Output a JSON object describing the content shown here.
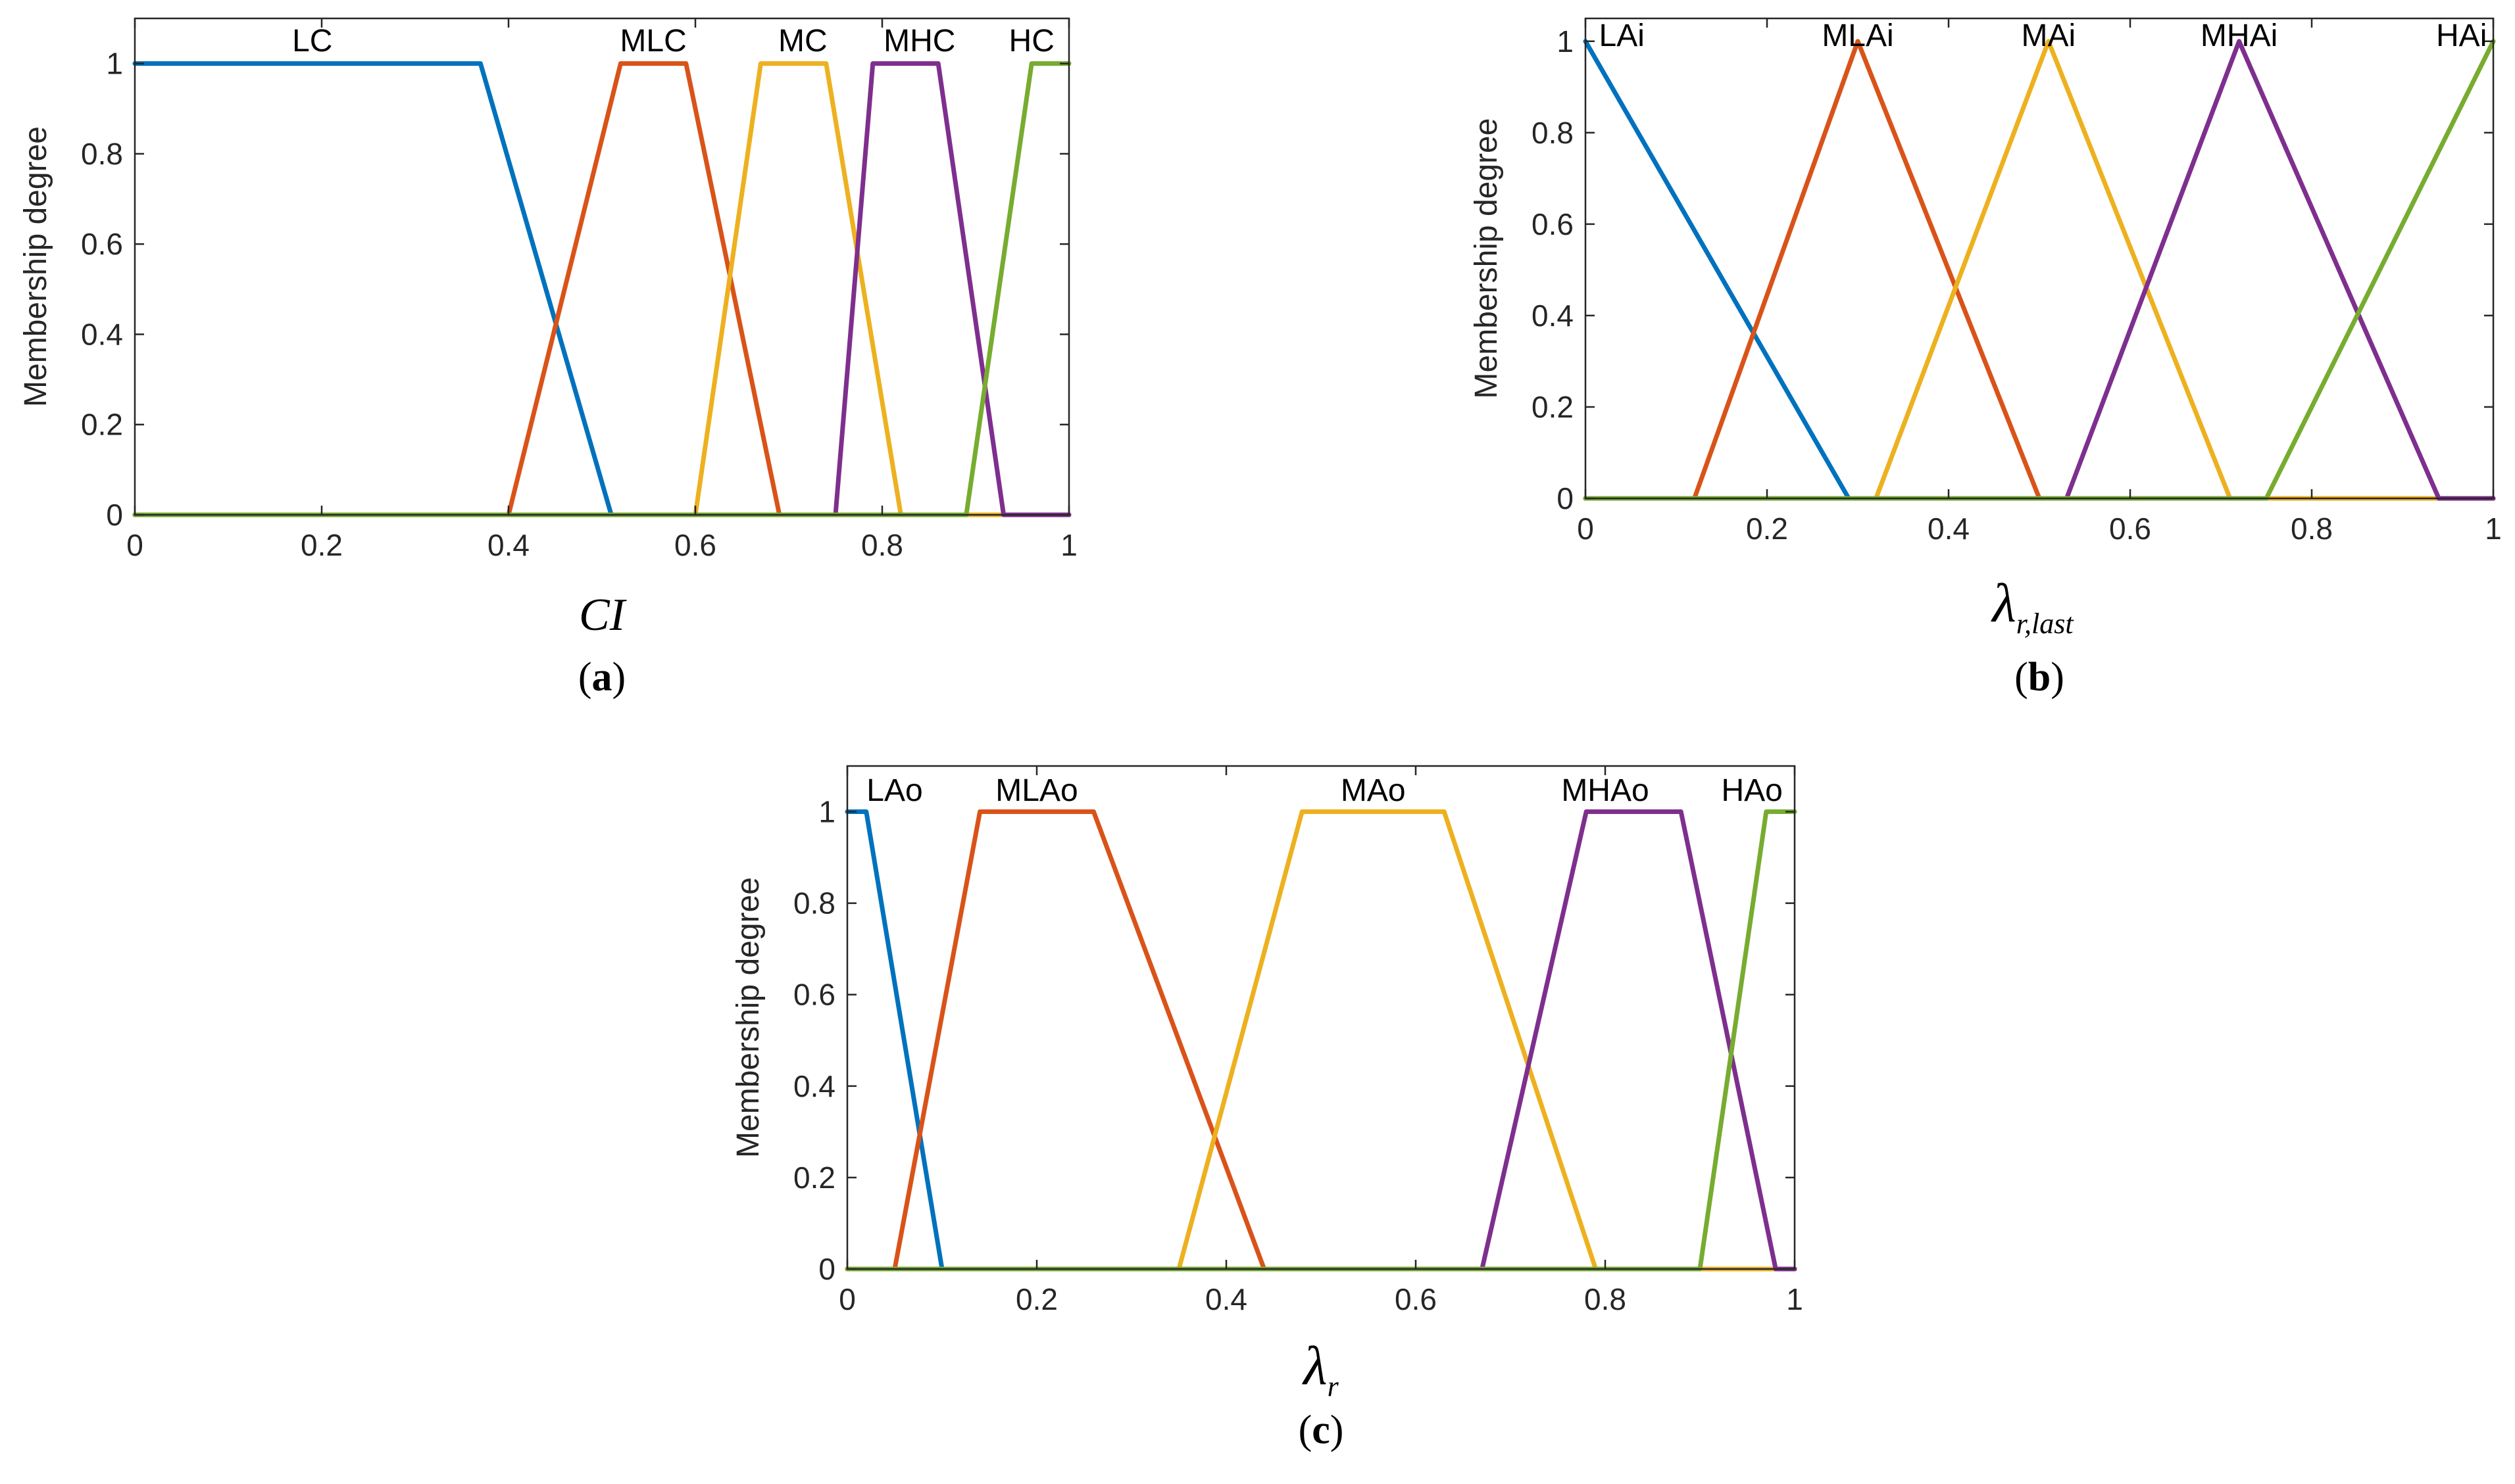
{
  "colors": {
    "blue": "#0072BD",
    "orange": "#D95319",
    "yellow": "#EDB120",
    "purple": "#7E2F8E",
    "green": "#77AC30"
  },
  "chart_data": [
    {
      "type": "line",
      "caption": "a",
      "xlabel": "CI",
      "ylabel": "Membership degree",
      "xlim": [
        0,
        1
      ],
      "ylim": [
        0,
        1.1
      ],
      "xticks": [
        "0",
        "0.2",
        "0.4",
        "0.6",
        "0.8",
        "1"
      ],
      "yticks": [
        "0",
        "0.2",
        "0.4",
        "0.6",
        "0.8",
        "1"
      ],
      "grid": false,
      "series": [
        {
          "name": "LC",
          "color": "blue",
          "x": [
            0,
            0.37,
            0.51,
            1
          ],
          "y": [
            1,
            1,
            0,
            0
          ]
        },
        {
          "name": "MLC",
          "color": "orange",
          "x": [
            0,
            0.4,
            0.52,
            0.59,
            0.69,
            1
          ],
          "y": [
            0,
            0,
            1,
            1,
            0,
            0
          ]
        },
        {
          "name": "MC",
          "color": "yellow",
          "x": [
            0,
            0.6,
            0.67,
            0.74,
            0.82,
            1
          ],
          "y": [
            0,
            0,
            1,
            1,
            0,
            0
          ]
        },
        {
          "name": "MHC",
          "color": "purple",
          "x": [
            0,
            0.75,
            0.79,
            0.86,
            0.93,
            1
          ],
          "y": [
            0,
            0,
            1,
            1,
            0,
            0
          ]
        },
        {
          "name": "HC",
          "color": "green",
          "x": [
            0,
            0.89,
            0.96,
            1
          ],
          "y": [
            0,
            0,
            1,
            1
          ]
        }
      ]
    },
    {
      "type": "line",
      "caption": "b",
      "xlabel": "λ",
      "xlabel_sub": "r,last",
      "ylabel": "Membership degree",
      "xlim": [
        0,
        1
      ],
      "ylim": [
        0,
        1.05
      ],
      "xticks": [
        "0",
        "0.2",
        "0.4",
        "0.6",
        "0.8",
        "1"
      ],
      "yticks": [
        "0",
        "0.2",
        "0.4",
        "0.6",
        "0.8",
        "1"
      ],
      "grid": false,
      "series": [
        {
          "name": "LAi",
          "color": "blue",
          "x": [
            0,
            0.29,
            1
          ],
          "y": [
            1,
            0,
            0
          ]
        },
        {
          "name": "MLAi",
          "color": "orange",
          "x": [
            0,
            0.12,
            0.3,
            0.5,
            1
          ],
          "y": [
            0,
            0,
            1,
            0,
            0
          ]
        },
        {
          "name": "MAi",
          "color": "yellow",
          "x": [
            0,
            0.32,
            0.51,
            0.71,
            1
          ],
          "y": [
            0,
            0,
            1,
            0,
            0
          ]
        },
        {
          "name": "MHAi",
          "color": "purple",
          "x": [
            0,
            0.53,
            0.72,
            0.94,
            1
          ],
          "y": [
            0,
            0,
            1,
            0,
            0
          ]
        },
        {
          "name": "HAi",
          "color": "green",
          "x": [
            0,
            0.75,
            1
          ],
          "y": [
            0,
            0,
            1
          ]
        }
      ]
    },
    {
      "type": "line",
      "caption": "c",
      "xlabel": "λ",
      "xlabel_sub": "r",
      "ylabel": "Membership degree",
      "xlim": [
        0,
        1
      ],
      "ylim": [
        0,
        1.1
      ],
      "xticks": [
        "0",
        "0.2",
        "0.4",
        "0.6",
        "0.8",
        "1"
      ],
      "yticks": [
        "0",
        "0.2",
        "0.4",
        "0.6",
        "0.8",
        "1"
      ],
      "grid": false,
      "series": [
        {
          "name": "LAo",
          "color": "blue",
          "x": [
            0,
            0.02,
            0.1,
            1
          ],
          "y": [
            1,
            1,
            0,
            0
          ]
        },
        {
          "name": "MLAo",
          "color": "orange",
          "x": [
            0,
            0.05,
            0.14,
            0.26,
            0.44,
            1
          ],
          "y": [
            0,
            0,
            1,
            1,
            0,
            0
          ]
        },
        {
          "name": "MAo",
          "color": "yellow",
          "x": [
            0,
            0.35,
            0.48,
            0.63,
            0.79,
            1
          ],
          "y": [
            0,
            0,
            1,
            1,
            0,
            0
          ]
        },
        {
          "name": "MHAo",
          "color": "purple",
          "x": [
            0,
            0.67,
            0.78,
            0.88,
            0.98,
            1
          ],
          "y": [
            0,
            0,
            1,
            1,
            0,
            0
          ]
        },
        {
          "name": "HAo",
          "color": "green",
          "x": [
            0,
            0.9,
            0.97,
            1
          ],
          "y": [
            0,
            0,
            1,
            1
          ]
        }
      ]
    }
  ]
}
